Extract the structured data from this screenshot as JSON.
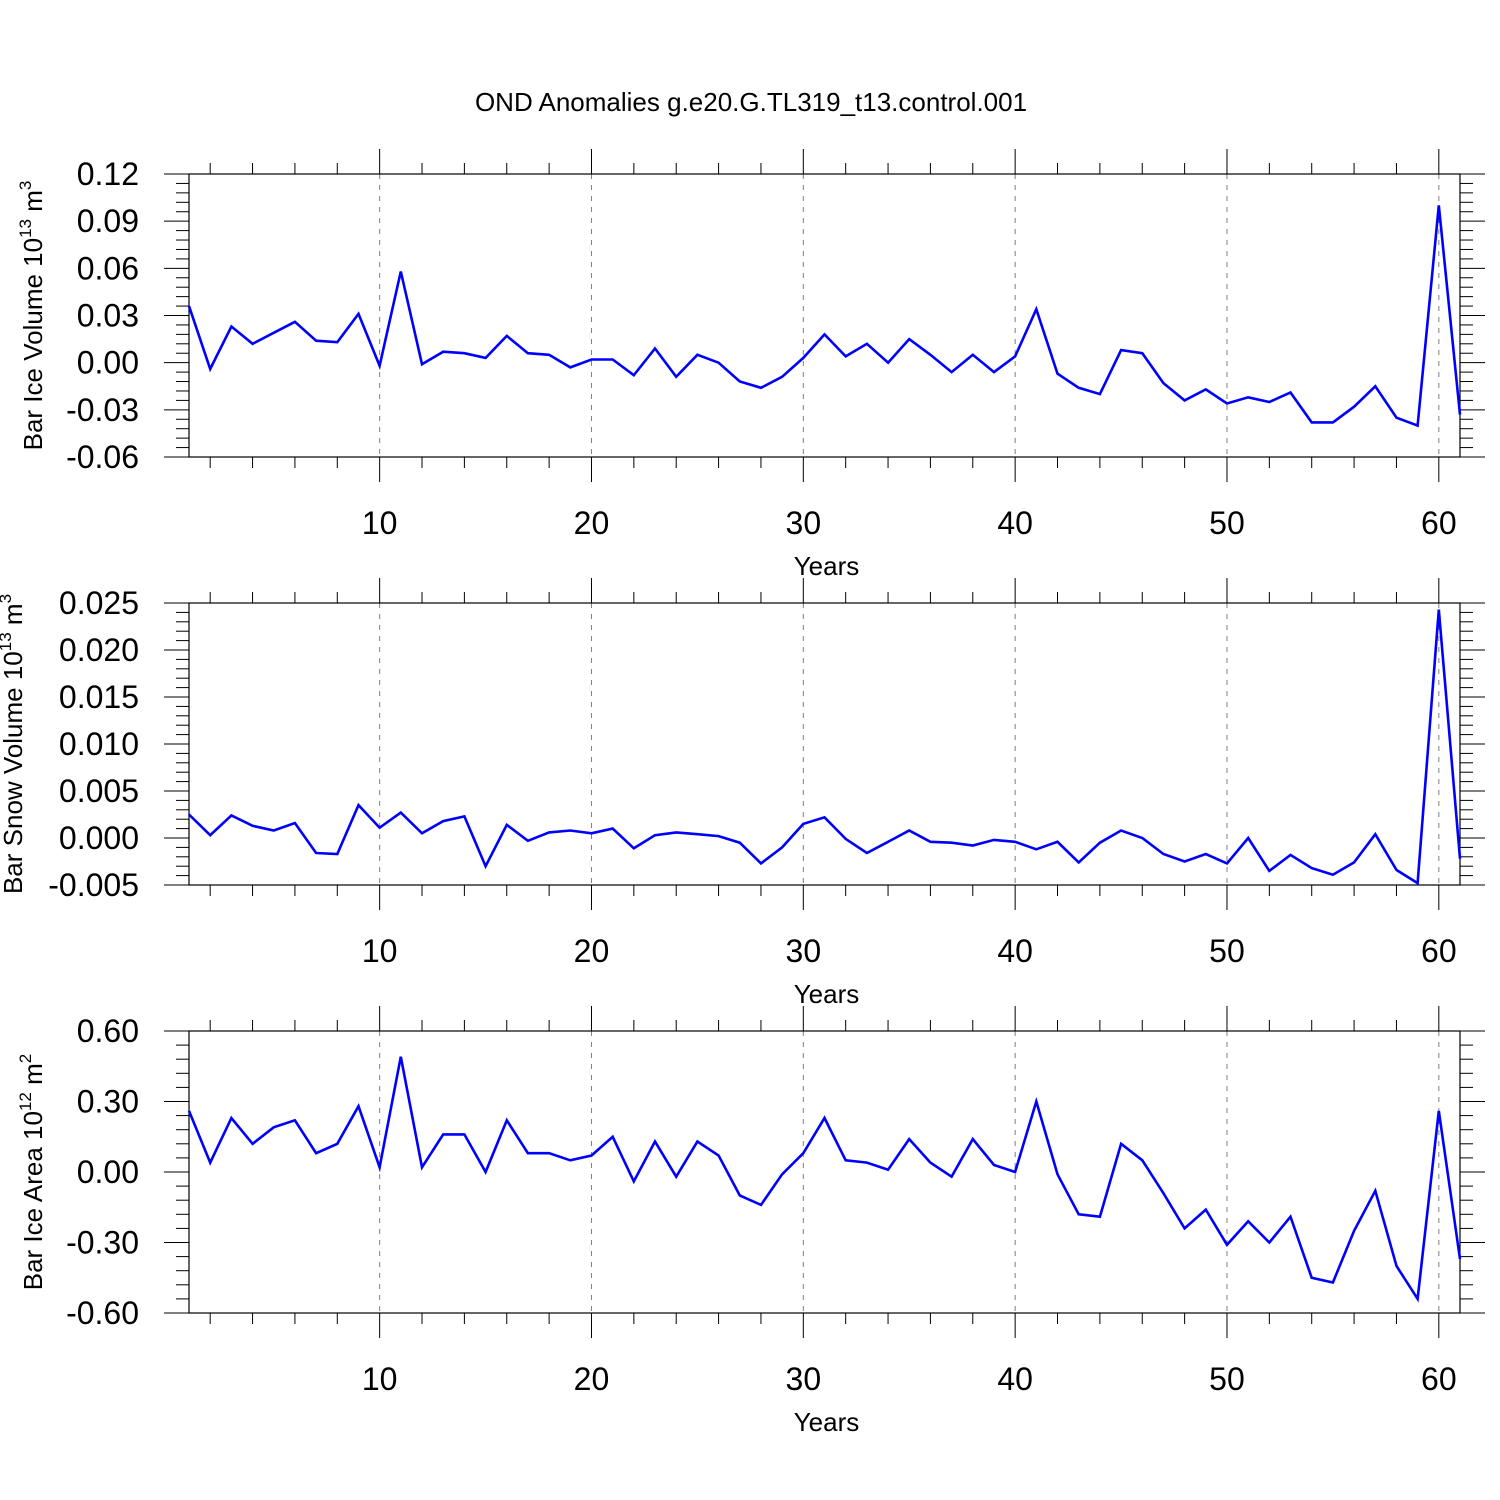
{
  "title": "OND Anomalies g.e20.G.TL319_t13.control.001",
  "colors": {
    "line": "#0000ff",
    "axis": "#000000",
    "grid": "#808080"
  },
  "chart_data": [
    {
      "type": "line",
      "xlabel": "Years",
      "ylabel_text": "Bar Ice Volume 10",
      "ylabel_exp": "13",
      "ylabel_unit": " m",
      "ylabel_unit_exp": "3",
      "xlim": [
        1,
        61
      ],
      "ylim": [
        -0.06,
        0.12
      ],
      "xticks": [
        10,
        20,
        30,
        40,
        50,
        60
      ],
      "yticks": [
        -0.06,
        -0.03,
        0.0,
        0.03,
        0.06,
        0.09,
        0.12
      ],
      "ytick_labels": [
        "-0.06",
        "-0.03",
        "0.00",
        "0.03",
        "0.06",
        "0.09",
        "0.12"
      ],
      "series": [
        {
          "x": [
            1,
            2,
            3,
            4,
            5,
            6,
            7,
            8,
            9,
            10,
            11,
            12,
            13,
            14,
            15,
            16,
            17,
            18,
            19,
            20,
            21,
            22,
            23,
            24,
            25,
            26,
            27,
            28,
            29,
            30,
            31,
            32,
            33,
            34,
            35,
            36,
            37,
            38,
            39,
            40,
            41,
            42,
            43,
            44,
            45,
            46,
            47,
            48,
            49,
            50,
            51,
            52,
            53,
            54,
            55,
            56,
            57,
            58,
            59,
            60,
            61
          ],
          "values": [
            0.036,
            -0.004,
            0.023,
            0.012,
            0.019,
            0.026,
            0.014,
            0.013,
            0.031,
            -0.002,
            0.058,
            -0.001,
            0.007,
            0.006,
            0.003,
            0.017,
            0.006,
            0.005,
            -0.003,
            0.002,
            0.002,
            -0.008,
            0.009,
            -0.009,
            0.005,
            0.0,
            -0.012,
            -0.016,
            -0.009,
            0.003,
            0.018,
            0.004,
            0.012,
            0.0,
            0.015,
            0.005,
            -0.006,
            0.005,
            -0.006,
            0.004,
            0.034,
            -0.007,
            -0.016,
            -0.02,
            0.008,
            0.006,
            -0.013,
            -0.024,
            -0.017,
            -0.026,
            -0.022,
            -0.025,
            -0.019,
            -0.038,
            -0.038,
            -0.028,
            -0.015,
            -0.035,
            -0.04,
            0.1,
            -0.033
          ]
        }
      ]
    },
    {
      "type": "line",
      "xlabel": "Years",
      "ylabel_text": "Bar Snow Volume 10",
      "ylabel_exp": "13",
      "ylabel_unit": " m",
      "ylabel_unit_exp": "3",
      "xlim": [
        1,
        61
      ],
      "ylim": [
        -0.005,
        0.025
      ],
      "xticks": [
        10,
        20,
        30,
        40,
        50,
        60
      ],
      "yticks": [
        -0.005,
        0.0,
        0.005,
        0.01,
        0.015,
        0.02,
        0.025
      ],
      "ytick_labels": [
        "-0.005",
        "0.000",
        "0.005",
        "0.010",
        "0.015",
        "0.020",
        "0.025"
      ],
      "series": [
        {
          "x": [
            1,
            2,
            3,
            4,
            5,
            6,
            7,
            8,
            9,
            10,
            11,
            12,
            13,
            14,
            15,
            16,
            17,
            18,
            19,
            20,
            21,
            22,
            23,
            24,
            25,
            26,
            27,
            28,
            29,
            30,
            31,
            32,
            33,
            34,
            35,
            36,
            37,
            38,
            39,
            40,
            41,
            42,
            43,
            44,
            45,
            46,
            47,
            48,
            49,
            50,
            51,
            52,
            53,
            54,
            55,
            56,
            57,
            58,
            59,
            60,
            61
          ],
          "values": [
            0.0025,
            0.0003,
            0.0024,
            0.0013,
            0.0008,
            0.0016,
            -0.0016,
            -0.0017,
            0.0035,
            0.0011,
            0.0027,
            0.0005,
            0.0018,
            0.0023,
            -0.003,
            0.0014,
            -0.0003,
            0.0006,
            0.0008,
            0.0005,
            0.001,
            -0.0011,
            0.0003,
            0.0006,
            0.0004,
            0.0002,
            -0.0005,
            -0.0027,
            -0.001,
            0.0015,
            0.0022,
            -0.0001,
            -0.0016,
            -0.0004,
            0.0008,
            -0.0004,
            -0.0005,
            -0.0008,
            -0.0002,
            -0.0004,
            -0.0012,
            -0.0004,
            -0.0026,
            -0.0005,
            0.0008,
            0.0,
            -0.0017,
            -0.0025,
            -0.0017,
            -0.0027,
            0.0,
            -0.0035,
            -0.0018,
            -0.0032,
            -0.0039,
            -0.0026,
            0.0004,
            -0.0034,
            -0.0048,
            0.0243,
            -0.0022
          ]
        }
      ]
    },
    {
      "type": "line",
      "xlabel": "Years",
      "ylabel_text": "Bar Ice Area 10",
      "ylabel_exp": "12",
      "ylabel_unit": " m",
      "ylabel_unit_exp": "2",
      "xlim": [
        1,
        61
      ],
      "ylim": [
        -0.6,
        0.6
      ],
      "xticks": [
        10,
        20,
        30,
        40,
        50,
        60
      ],
      "yticks": [
        -0.6,
        -0.3,
        0.0,
        0.3,
        0.6
      ],
      "ytick_labels": [
        "-0.60",
        "-0.30",
        "0.00",
        "0.30",
        "0.60"
      ],
      "series": [
        {
          "x": [
            1,
            2,
            3,
            4,
            5,
            6,
            7,
            8,
            9,
            10,
            11,
            12,
            13,
            14,
            15,
            16,
            17,
            18,
            19,
            20,
            21,
            22,
            23,
            24,
            25,
            26,
            27,
            28,
            29,
            30,
            31,
            32,
            33,
            34,
            35,
            36,
            37,
            38,
            39,
            40,
            41,
            42,
            43,
            44,
            45,
            46,
            47,
            48,
            49,
            50,
            51,
            52,
            53,
            54,
            55,
            56,
            57,
            58,
            59,
            60,
            61
          ],
          "values": [
            0.26,
            0.04,
            0.23,
            0.12,
            0.19,
            0.22,
            0.08,
            0.12,
            0.28,
            0.02,
            0.49,
            0.02,
            0.16,
            0.16,
            0.0,
            0.22,
            0.08,
            0.08,
            0.05,
            0.07,
            0.15,
            -0.04,
            0.13,
            -0.02,
            0.13,
            0.07,
            -0.1,
            -0.14,
            -0.01,
            0.08,
            0.23,
            0.05,
            0.04,
            0.01,
            0.14,
            0.04,
            -0.02,
            0.14,
            0.03,
            0.0,
            0.3,
            -0.01,
            -0.18,
            -0.19,
            0.12,
            0.05,
            -0.09,
            -0.24,
            -0.16,
            -0.31,
            -0.21,
            -0.3,
            -0.19,
            -0.45,
            -0.47,
            -0.25,
            -0.08,
            -0.4,
            -0.54,
            0.26,
            -0.37
          ]
        }
      ]
    }
  ]
}
